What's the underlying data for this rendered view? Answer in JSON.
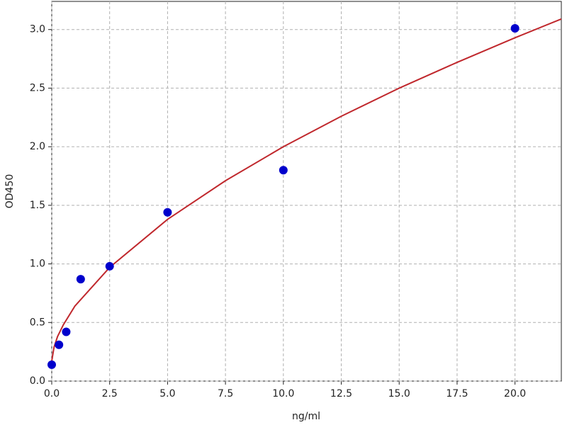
{
  "chart_data": {
    "type": "scatter",
    "x_label": "ng/ml",
    "y_label": "OD450",
    "xlim": [
      0,
      22
    ],
    "ylim": [
      0,
      3.24
    ],
    "xticks": [
      {
        "value": 0,
        "label": "0.0"
      },
      {
        "value": 2.5,
        "label": "2.5"
      },
      {
        "value": 5,
        "label": "5.0"
      },
      {
        "value": 7.5,
        "label": "7.5"
      },
      {
        "value": 10,
        "label": "10.0"
      },
      {
        "value": 12.5,
        "label": "12.5"
      },
      {
        "value": 15,
        "label": "15.0"
      },
      {
        "value": 17.5,
        "label": "17.5"
      },
      {
        "value": 20,
        "label": "20.0"
      }
    ],
    "yticks": [
      {
        "value": 0,
        "label": "0.0"
      },
      {
        "value": 0.5,
        "label": "0.5"
      },
      {
        "value": 1,
        "label": "1.0"
      },
      {
        "value": 1.5,
        "label": "1.5"
      },
      {
        "value": 2,
        "label": "2.0"
      },
      {
        "value": 2.5,
        "label": "2.5"
      },
      {
        "value": 3,
        "label": "3.0"
      }
    ],
    "grid": true,
    "series": [
      {
        "style": "line",
        "color": "#c0282d",
        "x": [
          0,
          0.1,
          0.25,
          0.5,
          1,
          2.5,
          5,
          7.5,
          10,
          12.5,
          15,
          17.5,
          20,
          22
        ],
        "values": [
          0.17,
          0.29,
          0.38,
          0.48,
          0.64,
          0.97,
          1.38,
          1.71,
          2.0,
          2.26,
          2.5,
          2.72,
          2.93,
          3.09
        ]
      },
      {
        "style": "marker",
        "color": "#0000cc",
        "x": [
          0,
          0.3125,
          0.625,
          1.25,
          2.5,
          5,
          10,
          20
        ],
        "values": [
          0.14,
          0.31,
          0.42,
          0.87,
          0.98,
          1.44,
          1.8,
          3.01
        ]
      }
    ]
  }
}
